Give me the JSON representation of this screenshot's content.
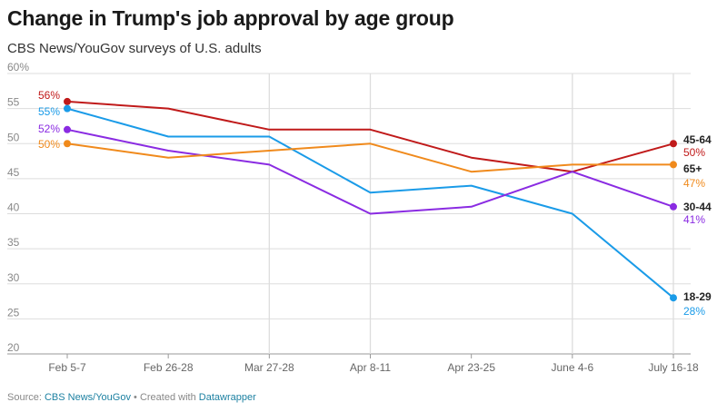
{
  "title": "Change in Trump's job approval by age group",
  "subtitle": "CBS News/YouGov surveys of U.S. adults",
  "footer": {
    "source_label": "Source:",
    "source_name": "CBS News/YouGov",
    "separator": "•",
    "created_label": "Created with",
    "tool_name": "Datawrapper"
  },
  "colors": {
    "18-29": "#1a9be8",
    "30-44": "#8a2be2",
    "45-64": "#c01a1a",
    "65+": "#f08a1c",
    "grid": "#dddddd",
    "footer_link": "#1d81a2"
  },
  "chart_data": {
    "type": "line",
    "title": "Change in Trump's job approval by age group",
    "subtitle": "CBS News/YouGov surveys of U.S. adults",
    "xlabel": "",
    "ylabel": "",
    "categories": [
      "Feb 5-7",
      "Feb 26-28",
      "Mar 27-28",
      "Apr 8-11",
      "Apr 23-25",
      "June 4-6",
      "July 16-18"
    ],
    "ylim": [
      20,
      60
    ],
    "yticks": [
      "60%",
      "55",
      "50",
      "45",
      "40",
      "35",
      "30",
      "25",
      "20"
    ],
    "grid": "horizontal and vertical",
    "series": [
      {
        "name": "45-64",
        "color": "#c01a1a",
        "values": [
          56,
          55,
          52,
          52,
          48,
          46,
          50
        ],
        "start_label": "56%",
        "end_label": "50%"
      },
      {
        "name": "18-29",
        "color": "#1a9be8",
        "values": [
          55,
          51,
          51,
          43,
          44,
          40,
          28
        ],
        "start_label": "55%",
        "end_label": "28%"
      },
      {
        "name": "30-44",
        "color": "#8a2be2",
        "values": [
          52,
          49,
          47,
          40,
          41,
          46,
          41
        ],
        "start_label": "52%",
        "end_label": "41%"
      },
      {
        "name": "65+",
        "color": "#f08a1c",
        "values": [
          50,
          48,
          49,
          50,
          46,
          47,
          47
        ],
        "start_label": "50%",
        "end_label": "47%"
      }
    ]
  }
}
